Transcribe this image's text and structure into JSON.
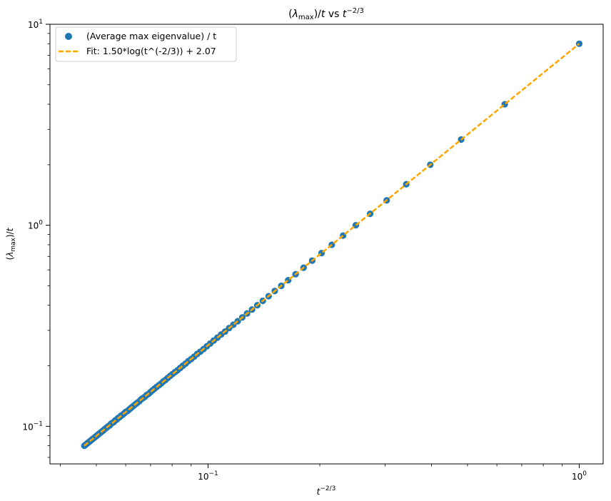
{
  "chart_data": {
    "type": "scatter",
    "title": "(λmax)/t vs t−2/3",
    "title_parts": {
      "open": "(",
      "lambda": "λ",
      "sub": "max",
      "close": ")/",
      "t": "t",
      "vs": " vs ",
      "t2": "t",
      "sup": "−2/3"
    },
    "xlabel": "t^{-2/3}",
    "xlabel_parts": {
      "t": "t",
      "sup": "−2/3"
    },
    "ylabel": "(λmax)/t",
    "ylabel_parts": {
      "open": "(",
      "lambda": "λ",
      "sub": "max",
      "close": ")/",
      "t": "t"
    },
    "x_scale": "log",
    "y_scale": "log",
    "xlim": [
      0.0375,
      1.16
    ],
    "ylim": [
      0.065,
      10
    ],
    "x_major_ticks": [
      0.1,
      1
    ],
    "x_tick_labels": [
      {
        "base": "10",
        "exp": "−1"
      },
      {
        "base": "10",
        "exp": "0"
      }
    ],
    "y_major_ticks": [
      0.1,
      1,
      10
    ],
    "y_tick_labels": [
      {
        "base": "10",
        "exp": "−1"
      },
      {
        "base": "10",
        "exp": "0"
      },
      {
        "base": "10",
        "exp": "1"
      }
    ],
    "grid": false,
    "legend_position": "top-left",
    "series": [
      {
        "name": "(Average max eigenvalue) / t",
        "kind": "scatter",
        "color": "#1f77b4",
        "t_values": [
          1,
          2,
          3,
          4,
          5,
          6,
          7,
          8,
          9,
          10,
          11,
          12,
          13,
          14,
          15,
          16,
          17,
          18,
          19,
          20,
          21,
          22,
          23,
          24,
          25,
          26,
          27,
          28,
          29,
          30,
          31,
          32,
          33,
          34,
          35,
          36,
          37,
          38,
          39,
          40,
          41,
          42,
          43,
          44,
          45,
          46,
          47,
          48,
          49,
          50,
          51,
          52,
          53,
          54,
          55,
          56,
          57,
          58,
          59,
          60,
          61,
          62,
          63,
          64,
          65,
          66,
          67,
          68,
          69,
          70,
          71,
          72,
          73,
          74,
          75,
          76,
          77,
          78,
          79,
          80,
          81,
          82,
          83,
          84,
          85,
          86,
          87,
          88,
          89,
          90,
          91,
          92,
          93,
          94,
          95,
          96,
          97,
          98,
          99,
          100
        ],
        "note_x": "x = t^(-2/3)",
        "y_values": [
          8.0,
          4.0,
          2.67,
          2.0,
          1.6,
          1.33,
          1.14,
          1.0,
          0.889,
          0.8,
          0.727,
          0.667,
          0.615,
          0.571,
          0.533,
          0.5,
          0.471,
          0.444,
          0.421,
          0.4,
          0.381,
          0.364,
          0.348,
          0.333,
          0.32,
          0.308,
          0.296,
          0.286,
          0.276,
          0.267,
          0.258,
          0.25,
          0.242,
          0.235,
          0.229,
          0.222,
          0.216,
          0.211,
          0.205,
          0.2,
          0.195,
          0.19,
          0.186,
          0.182,
          0.178,
          0.174,
          0.17,
          0.167,
          0.163,
          0.16,
          0.157,
          0.154,
          0.151,
          0.148,
          0.145,
          0.143,
          0.14,
          0.138,
          0.136,
          0.133,
          0.131,
          0.129,
          0.127,
          0.125,
          0.123,
          0.121,
          0.119,
          0.118,
          0.116,
          0.114,
          0.113,
          0.111,
          0.11,
          0.108,
          0.107,
          0.105,
          0.104,
          0.103,
          0.101,
          0.1,
          0.0988,
          0.0976,
          0.0964,
          0.0952,
          0.0941,
          0.093,
          0.092,
          0.0909,
          0.0899,
          0.0889,
          0.0879,
          0.087,
          0.086,
          0.0851,
          0.0842,
          0.0833,
          0.0825,
          0.0816,
          0.0808,
          0.08
        ]
      },
      {
        "name": "Fit: 1.50*log(t^(-2/3)) + 2.07",
        "kind": "line",
        "style": "dashed",
        "color": "#ffa500",
        "x": [
          0.0464,
          1.0
        ],
        "y": [
          0.08,
          8.0
        ]
      }
    ]
  }
}
